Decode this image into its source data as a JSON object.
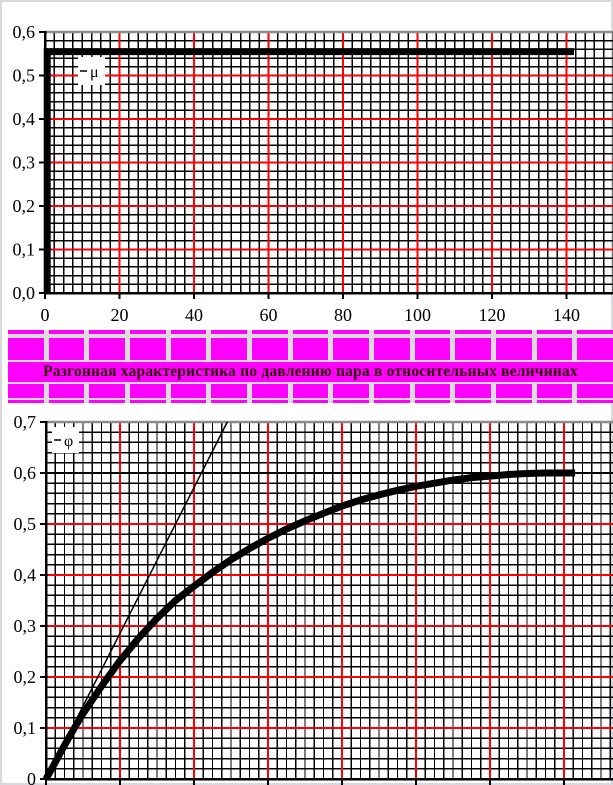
{
  "banner": {
    "title": "Разгонная характеристика по давлению пара в относительных величинах",
    "cell_color": "#FF00FF",
    "gap_color": "#DCDCDC",
    "text_color": "#2A0000",
    "cells_per_row": 15
  },
  "chart_data": [
    {
      "type": "line",
      "name": "steam-valve-step",
      "legend": "μ",
      "title": "",
      "xlabel": "",
      "ylabel": "",
      "xlim": [
        0,
        152.5
      ],
      "ylim": [
        0,
        0.6
      ],
      "x_ticks": [
        0,
        20,
        40,
        60,
        80,
        100,
        120,
        140
      ],
      "x_tick_labels": [
        "0",
        "20",
        "40",
        "60",
        "80",
        "100",
        "120",
        "140"
      ],
      "y_ticks": [
        0,
        0.1,
        0.2,
        0.3,
        0.4,
        0.5,
        0.6
      ],
      "y_tick_labels": [
        "0,0",
        "0,1",
        "0,2",
        "0,3",
        "0,4",
        "0,5",
        "0,6"
      ],
      "minor_dx": 2.5,
      "minor_dy": 0.02,
      "major_x": [
        20,
        40,
        60,
        80,
        100,
        120,
        140
      ],
      "major_y": [
        0.1,
        0.2,
        0.3,
        0.4,
        0.5
      ],
      "grid": true,
      "legend_position": "inside-top-left",
      "colors": {
        "minor": "#000000",
        "major": "#FF0000",
        "border": "#8C8C8C",
        "axis": "#000000"
      },
      "extra_lines": [],
      "legend_box": {
        "x": 78,
        "y": 57,
        "w": 27,
        "h": 28
      },
      "series": [
        {
          "name": "mu",
          "color": "#000000",
          "width": 7,
          "points": [
            [
              0.6,
              0
            ],
            [
              0.6,
              0.555
            ],
            [
              142,
              0.555
            ]
          ]
        }
      ]
    },
    {
      "type": "line",
      "name": "steam-pressure-response",
      "legend": "φ",
      "title": "",
      "xlabel": "",
      "ylabel": "",
      "xlim": [
        0,
        153
      ],
      "ylim": [
        0,
        0.7
      ],
      "x_ticks": [
        0,
        20,
        40,
        60,
        80,
        100,
        120,
        140
      ],
      "x_tick_labels": [],
      "y_ticks": [
        0,
        0.1,
        0.2,
        0.3,
        0.4,
        0.5,
        0.6,
        0.7
      ],
      "y_tick_labels": [
        "0",
        "0,1",
        "0,2",
        "0,3",
        "0,4",
        "0,5",
        "0,6",
        "0,7"
      ],
      "minor_dx": 2.5,
      "minor_dy": 0.02,
      "major_x": [
        20,
        40,
        60,
        80,
        100,
        120,
        140
      ],
      "major_y": [
        0.1,
        0.2,
        0.3,
        0.4,
        0.5
      ],
      "grid": true,
      "legend_position": "inside-top-left",
      "colors": {
        "minor": "#000000",
        "major": "#FF0000",
        "border": "#8C8C8C",
        "axis": "#000000"
      },
      "extra_lines": [
        {
          "y": 0.6,
          "color": "#000000",
          "width": 2
        }
      ],
      "legend_box": {
        "x": 52,
        "y": 24,
        "w": 27,
        "h": 26
      },
      "series": [
        {
          "name": "phi",
          "color": "#000000",
          "width": 7,
          "points": [
            [
              0,
              0
            ],
            [
              2.5,
              0.033
            ],
            [
              5,
              0.066
            ],
            [
              7.5,
              0.098
            ],
            [
              10,
              0.128
            ],
            [
              15,
              0.182
            ],
            [
              20,
              0.232
            ],
            [
              25,
              0.276
            ],
            [
              30,
              0.315
            ],
            [
              35,
              0.35
            ],
            [
              40,
              0.378
            ],
            [
              45,
              0.405
            ],
            [
              50,
              0.43
            ],
            [
              55,
              0.452
            ],
            [
              60,
              0.472
            ],
            [
              65,
              0.49
            ],
            [
              70,
              0.506
            ],
            [
              75,
              0.521
            ],
            [
              80,
              0.535
            ],
            [
              85,
              0.547
            ],
            [
              90,
              0.557
            ],
            [
              95,
              0.566
            ],
            [
              100,
              0.574
            ],
            [
              105,
              0.58
            ],
            [
              110,
              0.586
            ],
            [
              115,
              0.591
            ],
            [
              120,
              0.594
            ],
            [
              125,
              0.597
            ],
            [
              130,
              0.599
            ],
            [
              135,
              0.6
            ],
            [
              140,
              0.6
            ],
            [
              143,
              0.6
            ]
          ]
        },
        {
          "name": "initial-slope-tangent",
          "color": "#000000",
          "width": 1.5,
          "points": [
            [
              0,
              0
            ],
            [
              49,
              0.7
            ]
          ]
        }
      ]
    }
  ]
}
